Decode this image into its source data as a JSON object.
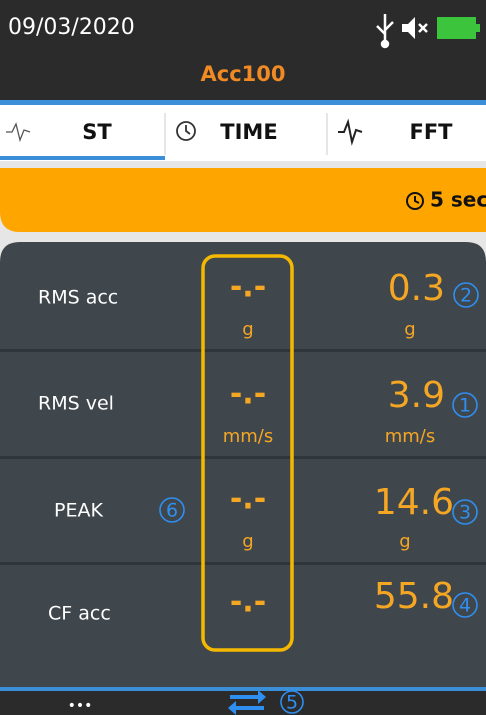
{
  "status": {
    "date": "09/03/2020"
  },
  "title": "Acc100",
  "tabs": [
    "ST",
    "TIME",
    "FFT"
  ],
  "timer": "5 sec",
  "rows": [
    {
      "label": "RMS acc",
      "left_value": "-.-",
      "left_unit": "g",
      "right_value": "0.3",
      "right_unit": "g",
      "marker": "2"
    },
    {
      "label": "RMS vel",
      "left_value": "-.-",
      "left_unit": "mm/s",
      "right_value": "3.9",
      "right_unit": "mm/s",
      "marker": "1"
    },
    {
      "label": "PEAK",
      "left_value": "-.-",
      "left_unit": "g",
      "right_value": "14.6",
      "right_unit": "g",
      "marker": "3"
    },
    {
      "label": "CF acc",
      "left_value": "-.-",
      "right_value": "55.8",
      "marker": "4"
    }
  ],
  "label_marker": "6",
  "bottom": {
    "menu": "•••",
    "marker": "5"
  }
}
